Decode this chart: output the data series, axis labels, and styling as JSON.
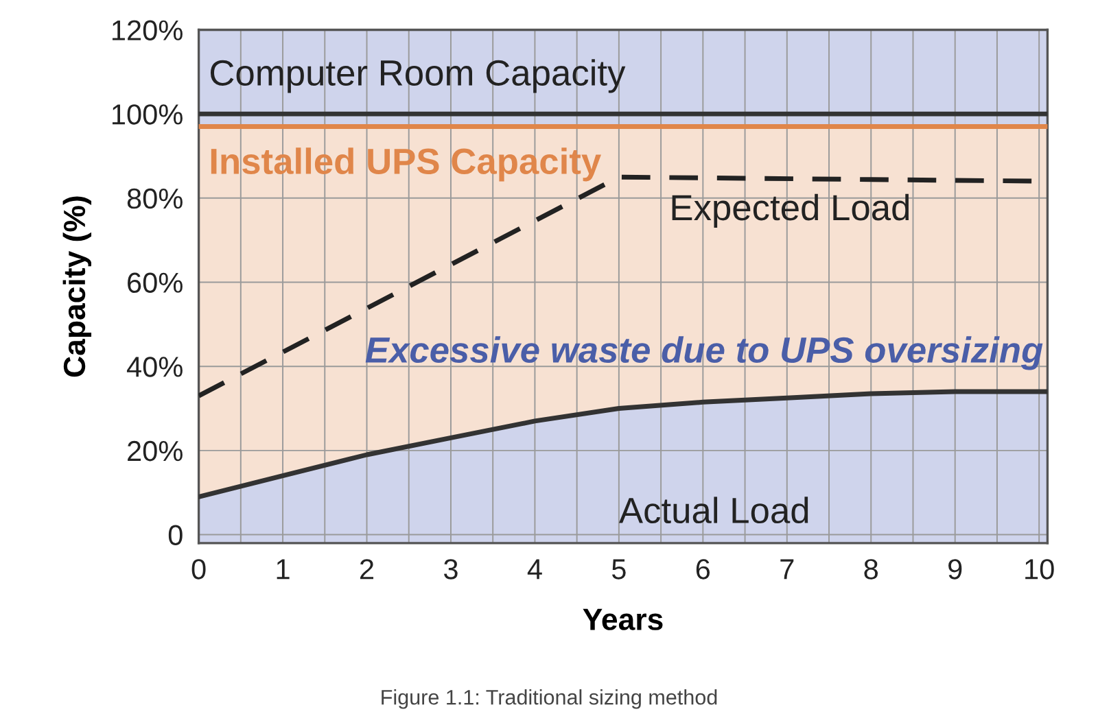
{
  "chart_data": {
    "type": "line",
    "xlabel": "Years",
    "ylabel": "Capacity (%)",
    "x": [
      0,
      1,
      2,
      3,
      4,
      5,
      6,
      7,
      8,
      9,
      10.1
    ],
    "series": [
      {
        "name": "Computer Room Capacity",
        "color": "#333333",
        "values": [
          100,
          100,
          100,
          100,
          100,
          100,
          100,
          100,
          100,
          100,
          100
        ]
      },
      {
        "name": "Installed UPS Capacity",
        "color": "#e0864a",
        "values": [
          97,
          97,
          97,
          97,
          97,
          97,
          97,
          97,
          97,
          97,
          97
        ],
        "lower": [
          9,
          14,
          19,
          23,
          27,
          30,
          31.5,
          32.5,
          33.5,
          34,
          34
        ],
        "upper": [
          97,
          97,
          97,
          97,
          97,
          97,
          97,
          97,
          97,
          97,
          97
        ]
      },
      {
        "name": "Expected Load",
        "color": "#222222",
        "line_style": "dashed",
        "x": [
          0,
          5,
          10.1
        ],
        "values": [
          33,
          85,
          84
        ]
      },
      {
        "name": "Actual Load",
        "color": "#333333",
        "values": [
          9,
          14,
          19,
          23,
          27,
          30,
          31.5,
          32.5,
          33.5,
          34,
          34
        ]
      }
    ],
    "xlim": [
      0,
      10.1
    ],
    "ylim": [
      -2,
      120
    ],
    "xticks": [
      0,
      1,
      2,
      3,
      4,
      5,
      6,
      7,
      8,
      9,
      10
    ],
    "yticks": [
      0,
      {
        "value": 20,
        "label": "20%"
      },
      {
        "value": 40,
        "label": "40%"
      },
      {
        "value": 60,
        "label": "60%"
      },
      {
        "value": 80,
        "label": "80%"
      },
      {
        "value": 100,
        "label": "100%"
      },
      {
        "value": 120,
        "label": "120%"
      }
    ],
    "grid": true,
    "annotations": [
      "Excessive waste due to UPS oversizing",
      "Figure 1.1: Traditional sizing method"
    ]
  }
}
